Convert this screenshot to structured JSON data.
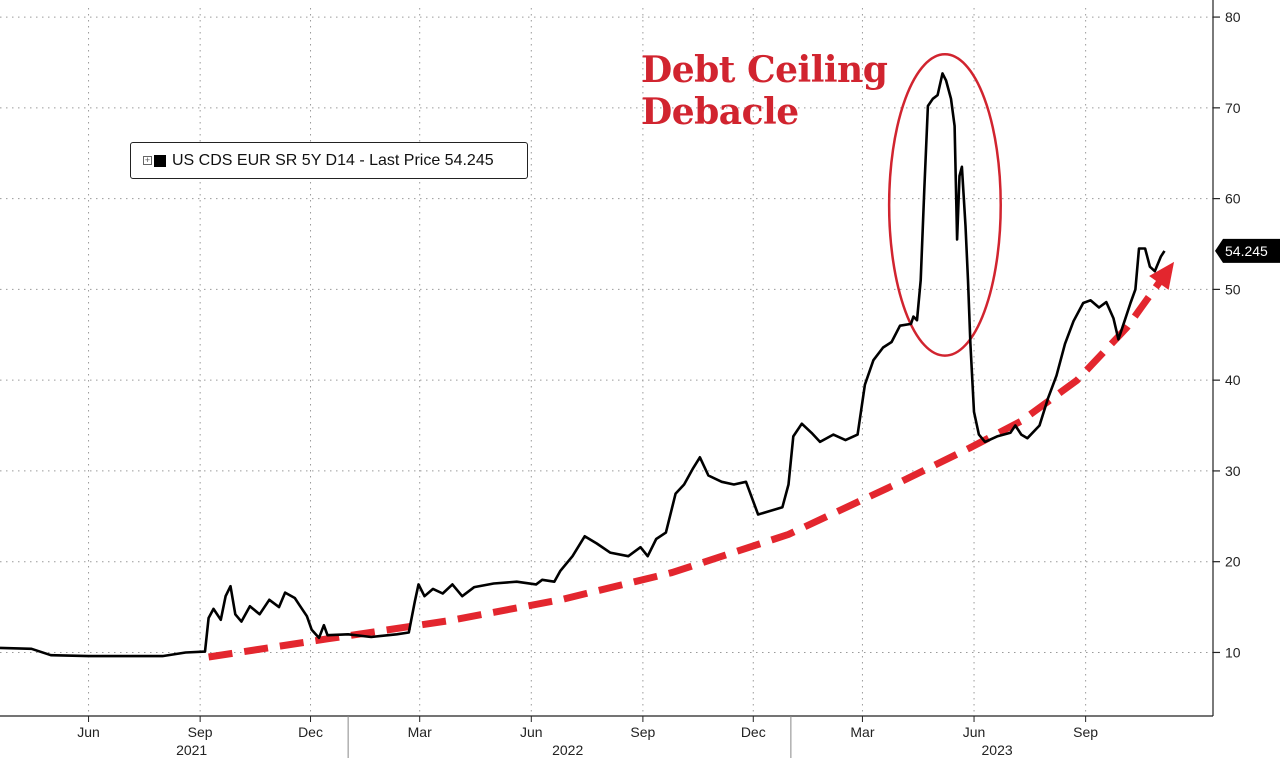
{
  "chart_data": {
    "type": "line",
    "annotation": {
      "lines": [
        "Debt Ceiling",
        "Debacle"
      ]
    },
    "legend": {
      "label": "US CDS EUR SR 5Y D14 - Last Price 54.245",
      "placement": "top-left"
    },
    "last_price": {
      "value": 54.245,
      "label": "54.245"
    },
    "y_axis": {
      "side": "right",
      "ylim": [
        3,
        81
      ],
      "ticks": [
        10,
        20,
        30,
        40,
        50,
        60,
        70,
        80
      ],
      "tick_labels": [
        "10",
        "20",
        "30",
        "40",
        "50",
        "60",
        "70",
        "80"
      ]
    },
    "x_axis": {
      "xlim": [
        "2021-03-20",
        "2023-12-15"
      ],
      "month_ticks": [
        {
          "date": "2021-06-01",
          "label": "Jun"
        },
        {
          "date": "2021-09-01",
          "label": "Sep"
        },
        {
          "date": "2021-12-01",
          "label": "Dec"
        },
        {
          "date": "2022-03-01",
          "label": "Mar"
        },
        {
          "date": "2022-06-01",
          "label": "Jun"
        },
        {
          "date": "2022-09-01",
          "label": "Sep"
        },
        {
          "date": "2022-12-01",
          "label": "Dec"
        },
        {
          "date": "2023-03-01",
          "label": "Mar"
        },
        {
          "date": "2023-06-01",
          "label": "Jun"
        },
        {
          "date": "2023-09-01",
          "label": "Sep"
        }
      ],
      "year_labels": [
        {
          "date": "2021-08-25",
          "label": "2021"
        },
        {
          "date": "2022-07-01",
          "label": "2022"
        },
        {
          "date": "2023-06-20",
          "label": "2023"
        }
      ],
      "year_dividers": [
        "2022-01-01",
        "2023-01-01"
      ]
    },
    "grid": true,
    "series": [
      {
        "color": "#000000",
        "points": [
          [
            "2021-03-20",
            10.5
          ],
          [
            "2021-04-15",
            10.4
          ],
          [
            "2021-05-01",
            9.7
          ],
          [
            "2021-06-01",
            9.6
          ],
          [
            "2021-07-01",
            9.6
          ],
          [
            "2021-08-01",
            9.6
          ],
          [
            "2021-08-20",
            10.0
          ],
          [
            "2021-09-05",
            10.1
          ],
          [
            "2021-09-08",
            13.8
          ],
          [
            "2021-09-12",
            14.8
          ],
          [
            "2021-09-18",
            13.6
          ],
          [
            "2021-09-22",
            16.2
          ],
          [
            "2021-09-26",
            17.3
          ],
          [
            "2021-09-30",
            14.2
          ],
          [
            "2021-10-05",
            13.4
          ],
          [
            "2021-10-12",
            15.1
          ],
          [
            "2021-10-20",
            14.2
          ],
          [
            "2021-10-28",
            15.8
          ],
          [
            "2021-11-05",
            15.0
          ],
          [
            "2021-11-10",
            16.6
          ],
          [
            "2021-11-18",
            16.0
          ],
          [
            "2021-11-22",
            15.2
          ],
          [
            "2021-11-28",
            14.0
          ],
          [
            "2021-12-02",
            12.5
          ],
          [
            "2021-12-08",
            11.6
          ],
          [
            "2021-12-12",
            13.0
          ],
          [
            "2021-12-15",
            11.9
          ],
          [
            "2022-01-01",
            12.0
          ],
          [
            "2022-01-20",
            11.7
          ],
          [
            "2022-02-10",
            12.0
          ],
          [
            "2022-02-20",
            12.2
          ],
          [
            "2022-02-25",
            15.6
          ],
          [
            "2022-02-28",
            17.5
          ],
          [
            "2022-03-05",
            16.2
          ],
          [
            "2022-03-12",
            17.0
          ],
          [
            "2022-03-20",
            16.5
          ],
          [
            "2022-03-28",
            17.5
          ],
          [
            "2022-04-05",
            16.2
          ],
          [
            "2022-04-15",
            17.2
          ],
          [
            "2022-05-01",
            17.6
          ],
          [
            "2022-05-20",
            17.8
          ],
          [
            "2022-06-05",
            17.5
          ],
          [
            "2022-06-10",
            18.0
          ],
          [
            "2022-06-20",
            17.8
          ],
          [
            "2022-06-25",
            19.0
          ],
          [
            "2022-07-05",
            20.6
          ],
          [
            "2022-07-15",
            22.8
          ],
          [
            "2022-07-25",
            22.0
          ],
          [
            "2022-08-05",
            21.0
          ],
          [
            "2022-08-20",
            20.6
          ],
          [
            "2022-08-30",
            21.6
          ],
          [
            "2022-09-05",
            20.6
          ],
          [
            "2022-09-12",
            22.5
          ],
          [
            "2022-09-20",
            23.2
          ],
          [
            "2022-09-28",
            27.5
          ],
          [
            "2022-10-05",
            28.5
          ],
          [
            "2022-10-12",
            30.2
          ],
          [
            "2022-10-18",
            31.5
          ],
          [
            "2022-10-25",
            29.5
          ],
          [
            "2022-11-05",
            28.8
          ],
          [
            "2022-11-15",
            28.5
          ],
          [
            "2022-11-25",
            28.8
          ],
          [
            "2022-12-05",
            25.2
          ],
          [
            "2022-12-15",
            25.6
          ],
          [
            "2022-12-25",
            26.0
          ],
          [
            "2022-12-30",
            28.5
          ],
          [
            "2023-01-03",
            33.8
          ],
          [
            "2023-01-10",
            35.2
          ],
          [
            "2023-01-18",
            34.2
          ],
          [
            "2023-01-25",
            33.2
          ],
          [
            "2023-02-05",
            34.0
          ],
          [
            "2023-02-15",
            33.4
          ],
          [
            "2023-02-25",
            34.0
          ],
          [
            "2023-03-03",
            39.5
          ],
          [
            "2023-03-10",
            42.2
          ],
          [
            "2023-03-18",
            43.6
          ],
          [
            "2023-03-25",
            44.2
          ],
          [
            "2023-04-01",
            46.0
          ],
          [
            "2023-04-10",
            46.2
          ],
          [
            "2023-04-12",
            47.0
          ],
          [
            "2023-04-15",
            46.6
          ],
          [
            "2023-04-18",
            51.0
          ],
          [
            "2023-04-21",
            61.0
          ],
          [
            "2023-04-24",
            70.2
          ],
          [
            "2023-04-28",
            71.0
          ],
          [
            "2023-05-02",
            71.4
          ],
          [
            "2023-05-06",
            73.8
          ],
          [
            "2023-05-09",
            73.0
          ],
          [
            "2023-05-13",
            71.0
          ],
          [
            "2023-05-16",
            68.0
          ],
          [
            "2023-05-18",
            55.5
          ],
          [
            "2023-05-20",
            62.5
          ],
          [
            "2023-05-22",
            63.5
          ],
          [
            "2023-05-25",
            57.0
          ],
          [
            "2023-05-27",
            51.0
          ],
          [
            "2023-05-29",
            44.0
          ],
          [
            "2023-06-01",
            36.5
          ],
          [
            "2023-06-05",
            34.0
          ],
          [
            "2023-06-10",
            33.2
          ],
          [
            "2023-06-20",
            33.8
          ],
          [
            "2023-07-01",
            34.2
          ],
          [
            "2023-07-05",
            35.0
          ],
          [
            "2023-07-10",
            34.0
          ],
          [
            "2023-07-15",
            33.6
          ],
          [
            "2023-07-25",
            35.0
          ],
          [
            "2023-08-01",
            38.0
          ],
          [
            "2023-08-08",
            40.5
          ],
          [
            "2023-08-15",
            44.0
          ],
          [
            "2023-08-22",
            46.5
          ],
          [
            "2023-08-30",
            48.5
          ],
          [
            "2023-09-05",
            48.8
          ],
          [
            "2023-09-12",
            48.0
          ],
          [
            "2023-09-18",
            48.6
          ],
          [
            "2023-09-24",
            46.8
          ],
          [
            "2023-09-28",
            44.5
          ],
          [
            "2023-10-03",
            46.5
          ],
          [
            "2023-10-08",
            48.5
          ],
          [
            "2023-10-12",
            50.0
          ],
          [
            "2023-10-15",
            54.5
          ],
          [
            "2023-10-20",
            54.5
          ],
          [
            "2023-10-24",
            52.5
          ],
          [
            "2023-10-28",
            52.0
          ],
          [
            "2023-11-02",
            53.6
          ],
          [
            "2023-11-05",
            54.245
          ]
        ]
      }
    ],
    "trend_arrow": {
      "color": "#e3262e",
      "points": [
        [
          "2021-09-08",
          9.5
        ],
        [
          "2021-12-15",
          11.5
        ],
        [
          "2022-03-25",
          13.5
        ],
        [
          "2022-06-25",
          15.8
        ],
        [
          "2022-09-25",
          18.8
        ],
        [
          "2022-12-30",
          23.0
        ],
        [
          "2023-03-28",
          28.5
        ],
        [
          "2023-05-28",
          32.5
        ],
        [
          "2023-07-10",
          35.5
        ],
        [
          "2023-08-25",
          40.0
        ],
        [
          "2023-10-05",
          45.8
        ],
        [
          "2023-11-10",
          52.5
        ]
      ]
    },
    "highlight_ellipse": {
      "color": "#d1242f",
      "center": [
        "2023-05-08",
        59.3
      ],
      "radius_days": 46,
      "radius_value": 16.6
    }
  }
}
